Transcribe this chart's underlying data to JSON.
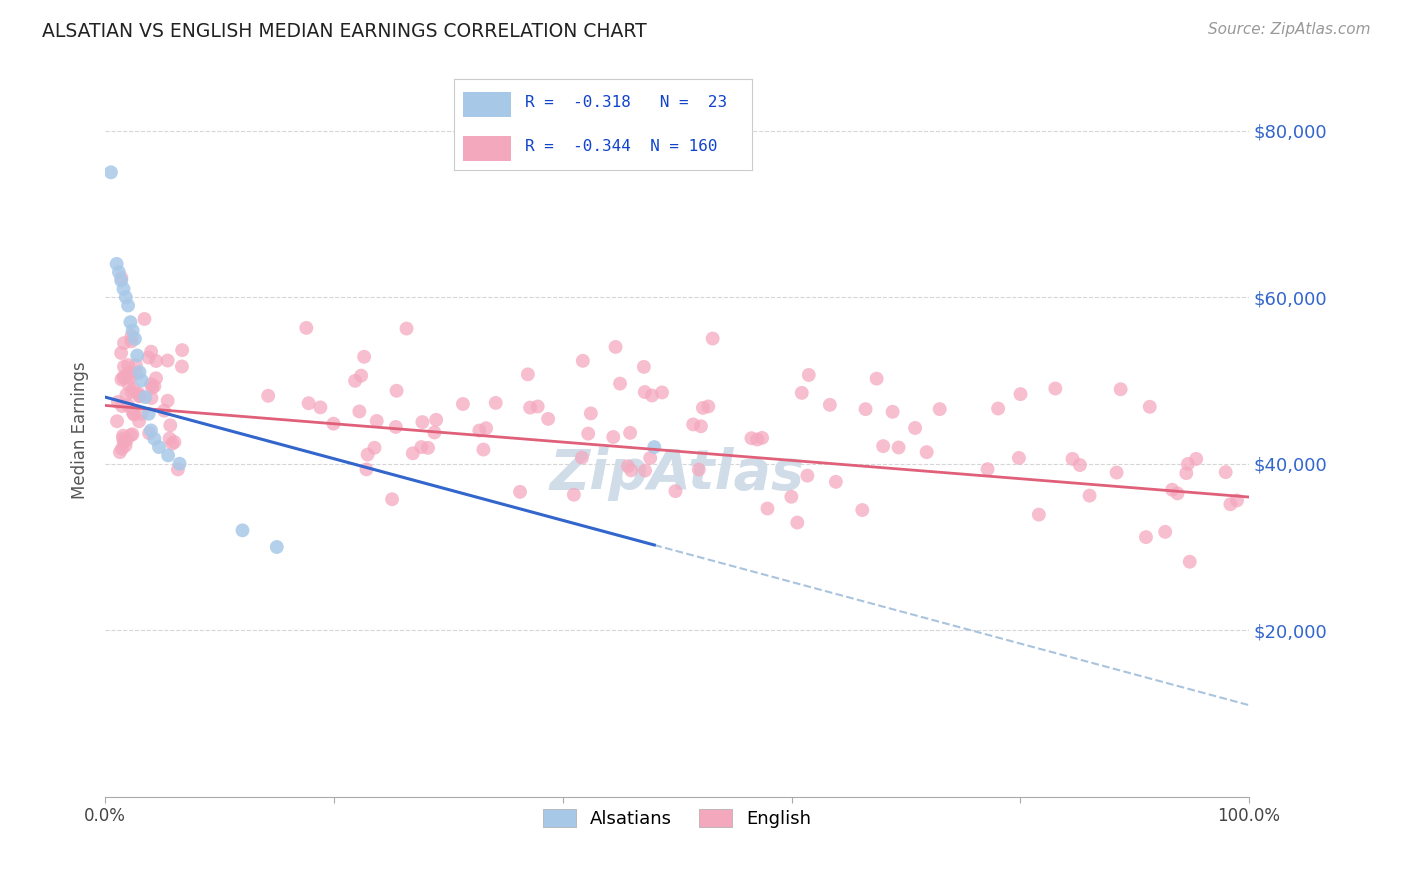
{
  "title": "ALSATIAN VS ENGLISH MEDIAN EARNINGS CORRELATION CHART",
  "source": "Source: ZipAtlas.com",
  "ylabel": "Median Earnings",
  "y_ticks": [
    20000,
    40000,
    60000,
    80000
  ],
  "y_tick_labels": [
    "$20,000",
    "$40,000",
    "$60,000",
    "$80,000"
  ],
  "y_min": 0,
  "y_max": 88000,
  "x_min": 0.0,
  "x_max": 1.0,
  "legend_r_alsatian": "-0.318",
  "legend_n_alsatian": "23",
  "legend_r_english": "-0.344",
  "legend_n_english": "160",
  "alsatian_color": "#a8c8e8",
  "english_color": "#f4a8be",
  "trendline_alsatian_color": "#3366cc",
  "trendline_english_color": "#e0607a",
  "trendline_dashed_color": "#aac4de",
  "watermark_color": "#d0dde8",
  "background_color": "#ffffff",
  "grid_color": "#cccccc",
  "right_tick_color": "#3366cc"
}
